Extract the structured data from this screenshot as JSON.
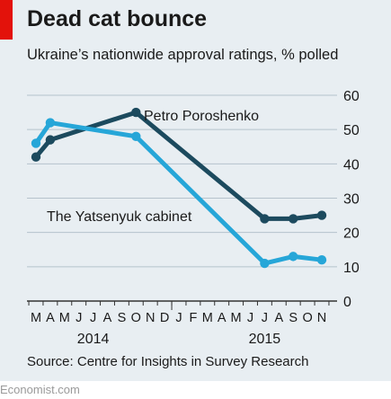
{
  "title": "Dead cat bounce",
  "subtitle": "Ukraine’s nationwide approval ratings, % polled",
  "source": "Source: Centre for Insights in Survey Research",
  "footer": "Economist.com",
  "colors": {
    "accent": "#e3120b",
    "background": "#e8eef2",
    "poroshenko": "#1c4a5e",
    "yatsenyuk": "#26a6d8",
    "grid": "#b5c3cc",
    "axis": "#333333"
  },
  "chart_data": {
    "type": "line",
    "ylim": [
      0,
      60
    ],
    "yticks": [
      "0",
      "10",
      "20",
      "30",
      "40",
      "50",
      "60"
    ],
    "month_labels": [
      "M",
      "A",
      "M",
      "J",
      "J",
      "A",
      "S",
      "O",
      "N",
      "D",
      "J",
      "F",
      "M",
      "A",
      "M",
      "J",
      "J",
      "A",
      "S",
      "O",
      "N"
    ],
    "year_labels": [
      {
        "label": "2014",
        "month_index": 4
      },
      {
        "label": "2015",
        "month_index": 16
      }
    ],
    "grid": true,
    "series": [
      {
        "name": "Petro Poroshenko",
        "color": "#1c4a5e",
        "points": [
          {
            "month_index": 0,
            "value": 42
          },
          {
            "month_index": 1,
            "value": 47
          },
          {
            "month_index": 7,
            "value": 55
          },
          {
            "month_index": 16,
            "value": 24
          },
          {
            "month_index": 18,
            "value": 24
          },
          {
            "month_index": 20,
            "value": 25
          }
        ]
      },
      {
        "name": "The Yatsenyuk cabinet",
        "color": "#26a6d8",
        "points": [
          {
            "month_index": 0,
            "value": 46
          },
          {
            "month_index": 1,
            "value": 52
          },
          {
            "month_index": 7,
            "value": 48
          },
          {
            "month_index": 16,
            "value": 11
          },
          {
            "month_index": 18,
            "value": 13
          },
          {
            "month_index": 20,
            "value": 12
          }
        ]
      }
    ]
  }
}
